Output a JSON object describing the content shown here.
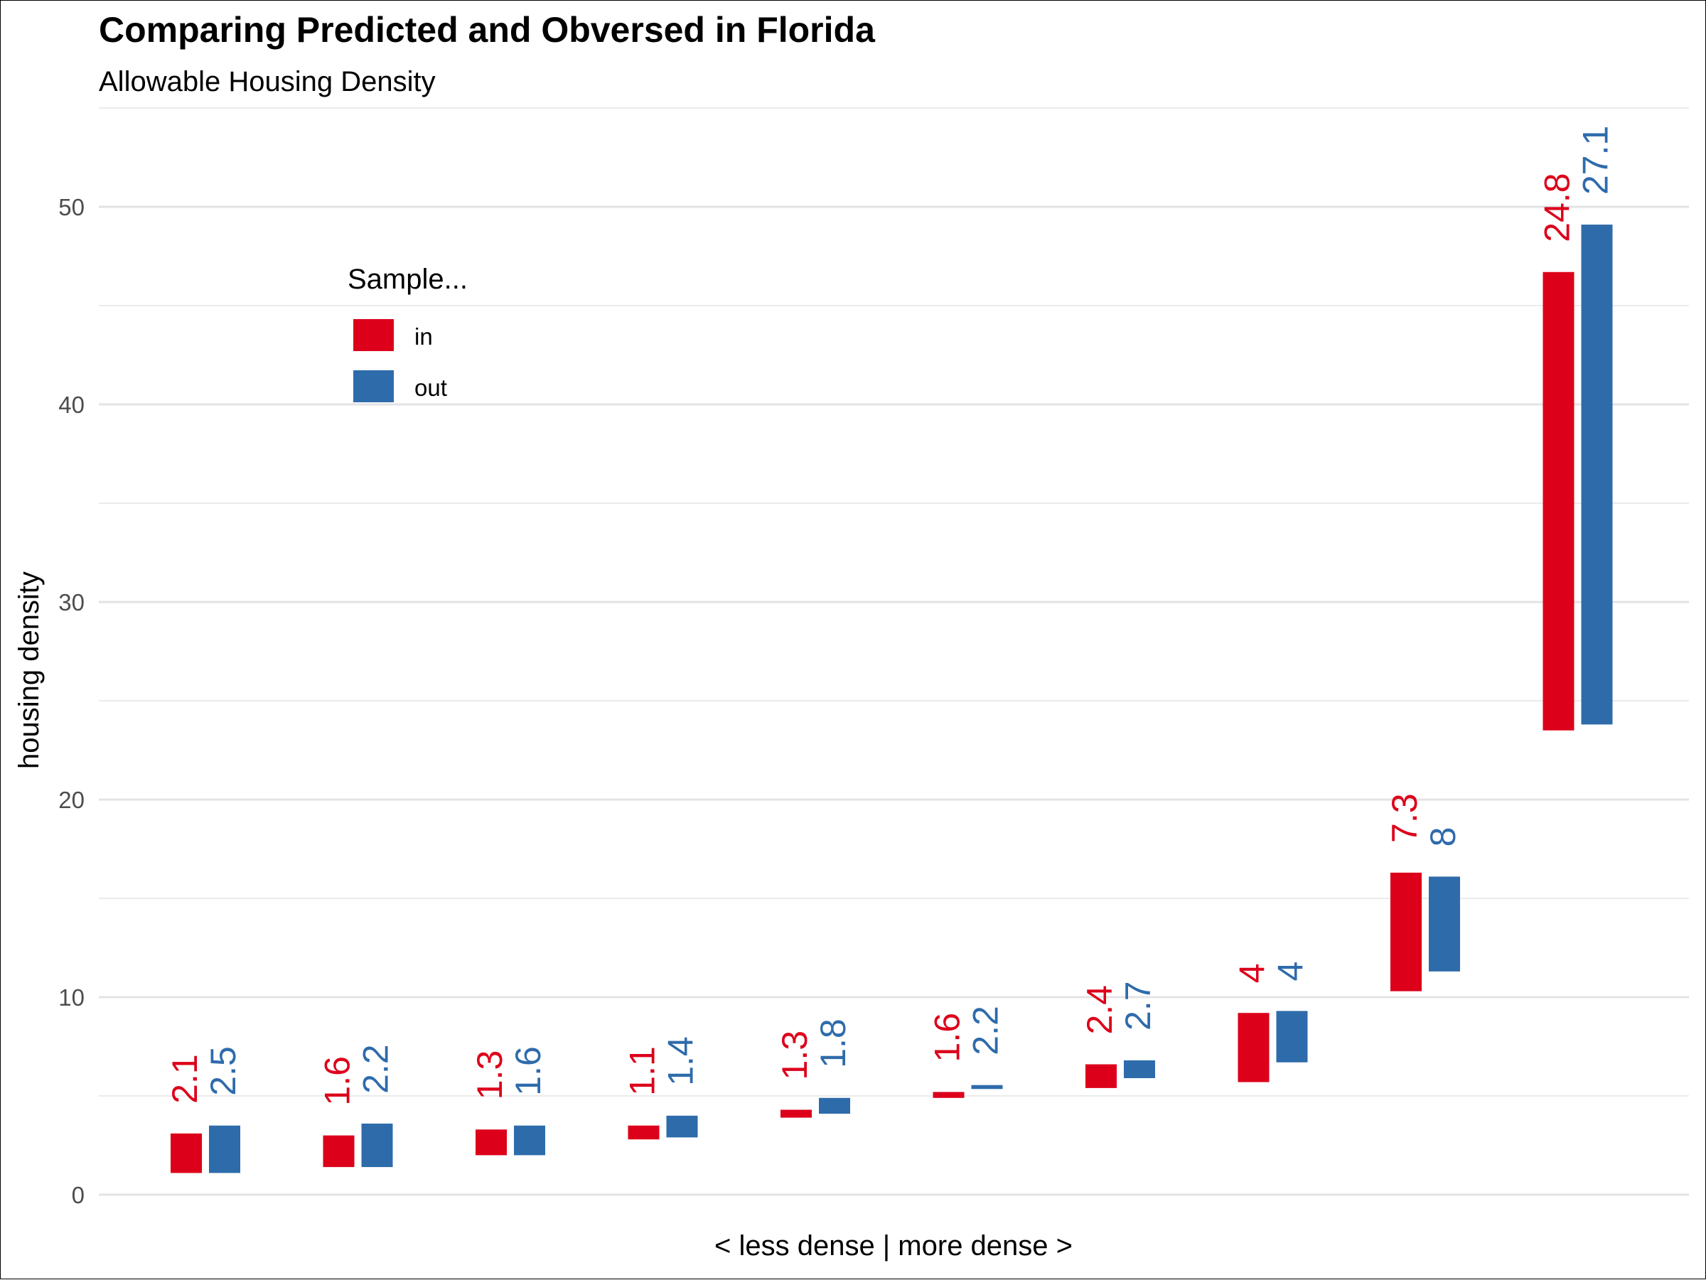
{
  "chart_data": {
    "type": "bar",
    "title": "Comparing Predicted and Obversed in Florida",
    "subtitle": "Allowable Housing Density",
    "xlabel": "< less dense | more dense >",
    "ylabel": "housing density",
    "ylim": [
      -1,
      55
    ],
    "y_ticks": [
      "0",
      "10",
      "20",
      "30",
      "40",
      "50"
    ],
    "y_tick_values": [
      0,
      10,
      20,
      30,
      40,
      50
    ],
    "grid": true,
    "legend": {
      "title": "Sample...",
      "position": "top-left-inside",
      "entries": [
        "in",
        "out"
      ]
    },
    "colors": {
      "in": "#DC001A",
      "out": "#2E6BAB"
    },
    "groups": 10,
    "series": [
      {
        "name": "in",
        "ranges": [
          [
            1.1,
            3.1
          ],
          [
            1.4,
            3.0
          ],
          [
            2.0,
            3.3
          ],
          [
            2.8,
            3.5
          ],
          [
            3.9,
            4.3
          ],
          [
            4.9,
            5.2
          ],
          [
            5.4,
            6.6
          ],
          [
            5.7,
            9.2
          ],
          [
            10.3,
            16.3
          ],
          [
            23.5,
            46.7
          ]
        ],
        "labels": [
          "2.1",
          "1.6",
          "1.3",
          "1.1",
          "1.3",
          "1.6",
          "2.4",
          "4",
          "7.3",
          "24.8"
        ]
      },
      {
        "name": "out",
        "ranges": [
          [
            1.1,
            3.5
          ],
          [
            1.4,
            3.6
          ],
          [
            2.0,
            3.5
          ],
          [
            2.9,
            4.0
          ],
          [
            4.1,
            4.9
          ],
          [
            5.35,
            5.55
          ],
          [
            5.9,
            6.8
          ],
          [
            6.7,
            9.3
          ],
          [
            11.3,
            16.1
          ],
          [
            23.8,
            49.1
          ]
        ],
        "labels": [
          "2.5",
          "2.2",
          "1.6",
          "1.4",
          "1.8",
          "2.2",
          "2.7",
          "4",
          "8",
          "27.1"
        ]
      }
    ]
  }
}
